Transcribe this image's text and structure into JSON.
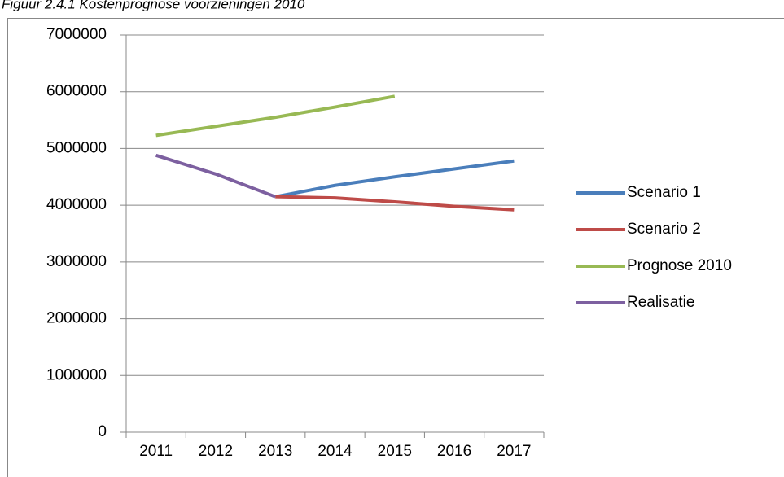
{
  "chart_data": {
    "type": "line",
    "title": "Figuur 2.4.1 Kostenprognose voorzieningen 2010",
    "categories": [
      "2011",
      "2012",
      "2013",
      "2014",
      "2015",
      "2016",
      "2017"
    ],
    "series": [
      {
        "name": "Scenario 1",
        "color": "#4a7ebb",
        "values": [
          null,
          null,
          4150000,
          4350000,
          4500000,
          4640000,
          4780000
        ]
      },
      {
        "name": "Scenario 2",
        "color": "#be4b48",
        "values": [
          null,
          null,
          4150000,
          4130000,
          4060000,
          3980000,
          3920000
        ]
      },
      {
        "name": "Prognose 2010",
        "color": "#98b954",
        "values": [
          5230000,
          5390000,
          5550000,
          5730000,
          5920000,
          null,
          null
        ]
      },
      {
        "name": "Realisatie",
        "color": "#7d60a0",
        "values": [
          4880000,
          4550000,
          4150000,
          null,
          null,
          null,
          null
        ]
      }
    ],
    "ylim": [
      0,
      7000000
    ],
    "yticks": [
      0,
      1000000,
      2000000,
      3000000,
      4000000,
      5000000,
      6000000,
      7000000
    ],
    "grid": true,
    "legend": "right"
  }
}
